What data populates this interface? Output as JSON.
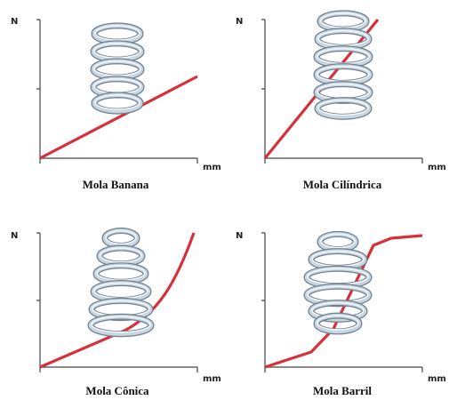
{
  "panels": [
    {
      "y_label": "N",
      "x_label": "mm",
      "caption": "Mola Banana"
    },
    {
      "y_label": "N",
      "x_label": "mm",
      "caption": "Mola Cilíndrica"
    },
    {
      "y_label": "N",
      "x_label": "mm",
      "caption": "Mola Cônica"
    },
    {
      "y_label": "N",
      "x_label": "mm",
      "caption": "Mola Barril"
    }
  ]
}
